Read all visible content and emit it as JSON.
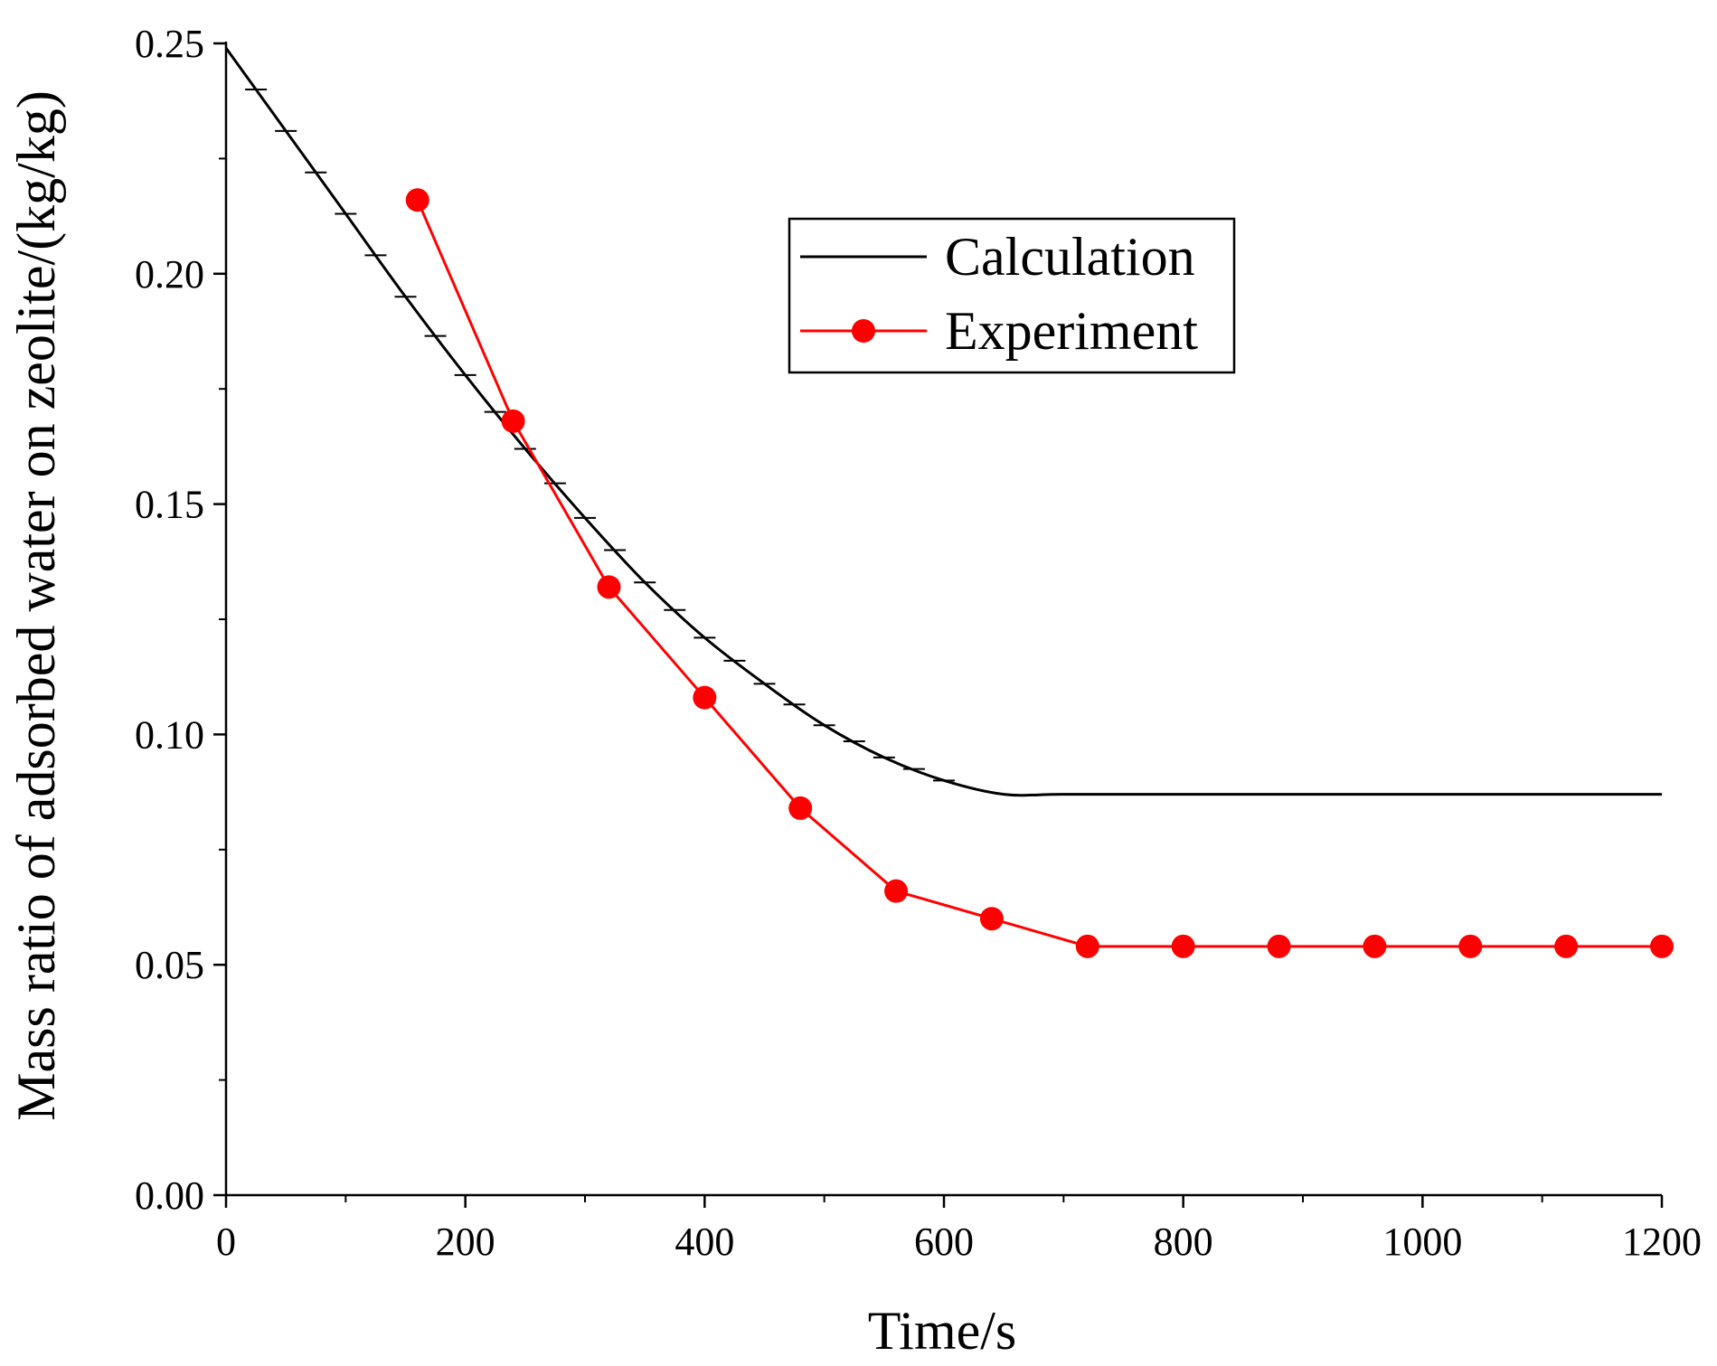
{
  "chart_data": {
    "type": "line",
    "title": "",
    "xlabel": "Time/s",
    "ylabel": "Mass ratio of adsorbed water on zeolite/(kg/kg)",
    "xlim": [
      0,
      1200
    ],
    "ylim": [
      0,
      0.25
    ],
    "x_ticks": [
      0,
      200,
      400,
      600,
      800,
      1000,
      1200
    ],
    "x_tick_labels": [
      "0",
      "200",
      "400",
      "600",
      "800",
      "1000",
      "1200"
    ],
    "y_ticks": [
      0,
      0.05,
      0.1,
      0.15,
      0.2,
      0.25
    ],
    "y_tick_labels": [
      "0.00",
      "0.05",
      "0.10",
      "0.15",
      "0.20",
      "0.25"
    ],
    "grid": false,
    "legend_position": "top-right",
    "series": [
      {
        "name": "Calculation",
        "color": "#000000",
        "marker": "none",
        "x": [
          0,
          50,
          100,
          150,
          200,
          250,
          300,
          350,
          400,
          450,
          500,
          550,
          600,
          650,
          700,
          800,
          900,
          1000,
          1100,
          1200
        ],
        "y": [
          0.249,
          0.231,
          0.213,
          0.195,
          0.178,
          0.162,
          0.147,
          0.133,
          0.121,
          0.111,
          0.102,
          0.095,
          0.09,
          0.087,
          0.087,
          0.087,
          0.087,
          0.087,
          0.087,
          0.087
        ]
      },
      {
        "name": "Experiment",
        "color": "#ff0000",
        "marker": "circle",
        "x": [
          160,
          240,
          320,
          400,
          480,
          560,
          640,
          720,
          800,
          880,
          960,
          1040,
          1120,
          1200
        ],
        "y": [
          0.216,
          0.168,
          0.132,
          0.108,
          0.084,
          0.066,
          0.06,
          0.054,
          0.054,
          0.054,
          0.054,
          0.054,
          0.054,
          0.054
        ]
      }
    ]
  }
}
